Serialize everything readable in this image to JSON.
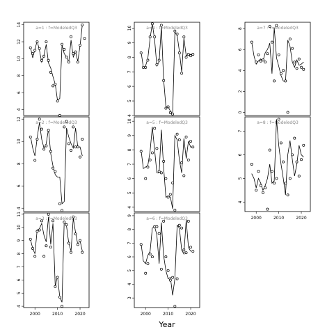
{
  "figure": {
    "xlabel": "Year"
  },
  "colors": {
    "line": "#000000",
    "label": "#888888"
  },
  "chart_data": [
    {
      "type": "line",
      "label": "a=1 : f=ModeledQ3",
      "xlim": [
        1995,
        2024
      ],
      "ylim": [
        3.3,
        14.3
      ],
      "yticks": [
        4,
        6,
        8,
        10,
        12,
        14
      ],
      "xticks": [
        2000,
        2010,
        2020
      ],
      "xticks_visible": false,
      "points": {
        "x": [
          1998,
          1999,
          2000,
          2001,
          2002,
          2003,
          2004,
          2005,
          2006,
          2007,
          2008,
          2009,
          2010,
          2011,
          2012,
          2013,
          2014,
          2015,
          2016,
          2017,
          2018,
          2019,
          2020,
          2021,
          2022
        ],
        "y": [
          11.3,
          10.6,
          11.0,
          12.0,
          11.2,
          9.8,
          10.3,
          12.0,
          9.8,
          8.4,
          6.8,
          7.0,
          5.0,
          3.3,
          11.7,
          11.1,
          10.2,
          9.6,
          12.6,
          10.6,
          10.8,
          9.6,
          11.6,
          14.0,
          12.4
        ]
      },
      "line": {
        "x": [
          1998,
          1999,
          2000,
          2001,
          2002,
          2003,
          2004,
          2005,
          2006,
          2007,
          2008,
          2009,
          2010,
          2011,
          2012,
          2013,
          2014,
          2015,
          2016,
          2017,
          2018,
          2019,
          2020,
          2021
        ],
        "y": [
          11.4,
          10.1,
          11.1,
          12.1,
          11.0,
          9.6,
          10.4,
          11.7,
          9.5,
          8.9,
          7.9,
          7.0,
          5.1,
          5.3,
          11.6,
          10.6,
          10.2,
          9.6,
          12.2,
          10.2,
          10.8,
          9.7,
          11.5,
          14.0
        ]
      }
    },
    {
      "type": "line",
      "label": "a=2 : f=ModeledQ3",
      "xlim": [
        1995,
        2024
      ],
      "ylim": [
        3.7,
        12.2
      ],
      "yticks": [
        4,
        6,
        8,
        10,
        12
      ],
      "xticks": [
        2000,
        2010,
        2020
      ],
      "xticks_visible": false,
      "points": {
        "x": [
          1998,
          2000,
          2001,
          2002,
          2003,
          2004,
          2005,
          2006,
          2007,
          2008,
          2009,
          2011,
          2012,
          2013,
          2014,
          2015,
          2016,
          2017,
          2018,
          2019,
          2020,
          2021
        ],
        "y": [
          10.4,
          8.3,
          10.2,
          12.0,
          11.1,
          9.3,
          9.6,
          11.0,
          9.1,
          7.6,
          7.3,
          4.4,
          3.8,
          11.3,
          11.8,
          9.8,
          9.2,
          11.3,
          9.5,
          9.5,
          8.6,
          10.2
        ]
      },
      "line": {
        "x": [
          1998,
          1999,
          2000,
          2001,
          2002,
          2003,
          2004,
          2005,
          2006,
          2007,
          2008,
          2009,
          2010,
          2011,
          2012,
          2013,
          2014,
          2015,
          2016,
          2017,
          2018,
          2019,
          2020,
          2021
        ],
        "y": [
          10.5,
          9.4,
          8.7,
          10.3,
          11.7,
          10.2,
          9.4,
          9.8,
          11.1,
          8.9,
          7.8,
          7.0,
          6.8,
          6.8,
          4.4,
          4.6,
          11.2,
          10.4,
          9.8,
          9.4,
          11.2,
          9.5,
          9.5,
          8.7
        ]
      }
    },
    {
      "type": "line",
      "label": "a=3 : f=ModeledQ3",
      "xlim": [
        1995,
        2024
      ],
      "ylim": [
        3.9,
        11.1
      ],
      "yticks": [
        4,
        5,
        6,
        7,
        8,
        9,
        10,
        11
      ],
      "xticks": [
        2000,
        2010,
        2020
      ],
      "xticks_visible": true,
      "points": {
        "x": [
          1998,
          1999,
          2000,
          2001,
          2002,
          2003,
          2004,
          2005,
          2006,
          2007,
          2008,
          2009,
          2010,
          2011,
          2012,
          2013,
          2014,
          2015,
          2016,
          2017,
          2018,
          2019,
          2020,
          2021
        ],
        "y": [
          9.1,
          8.4,
          7.8,
          9.7,
          9.8,
          10.5,
          7.8,
          8.6,
          11.0,
          8.5,
          10.5,
          5.5,
          6.2,
          4.7,
          4.0,
          10.4,
          10.2,
          8.8,
          8.1,
          10.8,
          9.5,
          8.7,
          9.0,
          8.1
        ]
      },
      "line": {
        "x": [
          1998,
          1999,
          2000,
          2001,
          2002,
          2003,
          2004,
          2005,
          2006,
          2007,
          2008,
          2009,
          2010,
          2011,
          2012,
          2013,
          2014,
          2015,
          2016,
          2017,
          2018,
          2019,
          2020,
          2021
        ],
        "y": [
          9.1,
          8.4,
          8.0,
          9.8,
          9.9,
          10.3,
          9.4,
          8.9,
          10.8,
          8.7,
          10.3,
          5.5,
          6.3,
          4.7,
          4.3,
          10.5,
          10.1,
          8.8,
          8.2,
          10.7,
          9.6,
          8.7,
          9.0,
          8.2
        ]
      }
    },
    {
      "type": "line",
      "label": "a=4 : f=ModeledQ3",
      "xlim": [
        1995,
        2024
      ],
      "ylim": [
        4.0,
        10.4
      ],
      "yticks": [
        4,
        5,
        6,
        7,
        8,
        9,
        10
      ],
      "xticks": [
        2000,
        2010,
        2020
      ],
      "xticks_visible": false,
      "points": {
        "x": [
          1998,
          1999,
          2000,
          2001,
          2002,
          2003,
          2004,
          2005,
          2006,
          2007,
          2008,
          2009,
          2010,
          2011,
          2012,
          2013,
          2014,
          2015,
          2016,
          2017,
          2018,
          2019,
          2020,
          2021
        ],
        "y": [
          8.3,
          7.3,
          7.3,
          7.8,
          9.4,
          10.3,
          9.4,
          7.5,
          7.8,
          10.2,
          6.4,
          4.5,
          4.6,
          4.2,
          4.1,
          9.8,
          9.6,
          8.3,
          6.9,
          9.4,
          8.0,
          8.2,
          8.1,
          8.2
        ]
      },
      "line": {
        "x": [
          1998,
          1999,
          2000,
          2001,
          2002,
          2003,
          2004,
          2005,
          2006,
          2007,
          2008,
          2009,
          2010,
          2011,
          2012,
          2013,
          2014,
          2015,
          2016,
          2017,
          2018,
          2019,
          2020,
          2021
        ],
        "y": [
          8.4,
          7.3,
          7.4,
          7.9,
          9.3,
          10.3,
          9.2,
          7.4,
          7.7,
          10.1,
          6.5,
          4.6,
          4.6,
          4.3,
          4.1,
          9.7,
          9.5,
          8.4,
          7.0,
          9.3,
          8.1,
          8.2,
          8.2,
          8.2
        ]
      }
    },
    {
      "type": "line",
      "label": "a=5 : f=ModeledQ3",
      "xlim": [
        1995,
        2024
      ],
      "ylim": [
        3.7,
        10.3
      ],
      "yticks": [
        4,
        5,
        6,
        7,
        8,
        9,
        10
      ],
      "xticks": [
        2000,
        2010,
        2020
      ],
      "xticks_visible": false,
      "points": {
        "x": [
          1998,
          2000,
          2001,
          2002,
          2003,
          2004,
          2005,
          2006,
          2007,
          2008,
          2009,
          2010,
          2011,
          2012,
          2013,
          2014,
          2015,
          2016,
          2017,
          2018,
          2019,
          2020,
          2021
        ],
        "y": [
          7.9,
          6.0,
          6.8,
          7.3,
          7.8,
          9.5,
          8.1,
          6.5,
          6.4,
          7.2,
          6.0,
          4.7,
          4.9,
          5.7,
          3.8,
          9.1,
          8.7,
          7.1,
          6.2,
          8.9,
          7.3,
          8.6,
          8.2
        ]
      },
      "line": {
        "x": [
          1998,
          1999,
          2000,
          2001,
          2002,
          2003,
          2004,
          2005,
          2006,
          2007,
          2008,
          2009,
          2010,
          2011,
          2012,
          2013,
          2014,
          2015,
          2016,
          2017,
          2018,
          2019,
          2020,
          2021
        ],
        "y": [
          8.0,
          6.7,
          6.8,
          6.9,
          7.9,
          9.6,
          8.0,
          6.4,
          6.4,
          9.4,
          6.8,
          4.7,
          4.8,
          4.7,
          3.9,
          9.0,
          8.7,
          7.3,
          6.4,
          8.8,
          7.4,
          8.6,
          8.2,
          8.2
        ]
      }
    },
    {
      "type": "line",
      "label": "a=6 : f=ModeledQ3",
      "xlim": [
        1995,
        2024
      ],
      "ylim": [
        2.3,
        9.2
      ],
      "yticks": [
        3,
        4,
        5,
        6,
        7,
        8,
        9
      ],
      "xticks": [
        2000,
        2010,
        2020
      ],
      "xticks_visible": true,
      "points": {
        "x": [
          1998,
          2000,
          2001,
          2002,
          2003,
          2004,
          2005,
          2006,
          2007,
          2008,
          2009,
          2010,
          2011,
          2012,
          2013,
          2014,
          2015,
          2016,
          2017,
          2018,
          2019,
          2020,
          2021
        ],
        "y": [
          6.9,
          4.8,
          5.5,
          6.2,
          6.0,
          8.2,
          8.2,
          7.7,
          5.1,
          8.6,
          6.0,
          5.0,
          4.3,
          4.5,
          2.4,
          4.4,
          8.3,
          8.1,
          6.5,
          6.3,
          8.6,
          6.7,
          6.4
        ]
      },
      "line": {
        "x": [
          1998,
          1999,
          2000,
          2001,
          2002,
          2003,
          2004,
          2005,
          2006,
          2007,
          2008,
          2009,
          2010,
          2011,
          2012,
          2013,
          2014,
          2015,
          2016,
          2017,
          2018,
          2019,
          2020
        ],
        "y": [
          7.0,
          5.7,
          5.5,
          6.1,
          6.4,
          8.1,
          8.2,
          7.6,
          5.5,
          8.5,
          6.1,
          5.0,
          4.4,
          4.5,
          3.2,
          4.4,
          8.3,
          8.1,
          6.5,
          6.2,
          8.7,
          6.7,
          6.4
        ]
      }
    },
    {
      "type": "line",
      "label": "a=7 : f=ModeledQ3",
      "xlim": [
        1995,
        2024
      ],
      "ylim": [
        -0.3,
        8.6
      ],
      "yticks": [
        0,
        2,
        4,
        6,
        8
      ],
      "xticks": [
        2000,
        2010,
        2020
      ],
      "xticks_visible": false,
      "points": {
        "x": [
          1998,
          2000,
          2001,
          2002,
          2003,
          2004,
          2005,
          2006,
          2007,
          2008,
          2009,
          2010,
          2011,
          2012,
          2013,
          2014,
          2015,
          2016,
          2017,
          2018,
          2019,
          2020,
          2021
        ],
        "y": [
          6.7,
          4.8,
          5.5,
          4.9,
          5.0,
          4.8,
          5.6,
          8.2,
          6.7,
          3.0,
          8.3,
          5.5,
          3.7,
          4.0,
          3.0,
          0.0,
          7.0,
          6.1,
          4.8,
          4.2,
          5.1,
          4.3,
          4.1
        ]
      },
      "line": {
        "x": [
          1998,
          1999,
          2000,
          2001,
          2002,
          2003,
          2004,
          2005,
          2006,
          2007,
          2008,
          2009,
          2010,
          2011,
          2012,
          2013,
          2014,
          2015,
          2016,
          2017,
          2018,
          2019,
          2020,
          2021
        ],
        "y": [
          6.7,
          5.4,
          4.6,
          4.9,
          5.1,
          4.9,
          5.7,
          6.0,
          6.6,
          3.7,
          8.1,
          5.2,
          4.4,
          3.5,
          3.0,
          2.9,
          6.9,
          6.3,
          4.8,
          4.3,
          5.0,
          4.5,
          4.6,
          4.8
        ]
      }
    },
    {
      "type": "line",
      "label": "a=8 : f=ModeledQ3",
      "xlim": [
        1995,
        2024
      ],
      "ylim": [
        3.6,
        7.6
      ],
      "yticks": [
        4,
        5,
        6,
        7
      ],
      "xticks": [
        2000,
        2010,
        2020
      ],
      "xticks_visible": true,
      "points": {
        "x": [
          1998,
          2000,
          2001,
          2002,
          2003,
          2004,
          2005,
          2006,
          2007,
          2008,
          2009,
          2010,
          2011,
          2012,
          2013,
          2014,
          2015,
          2016,
          2017,
          2018,
          2019,
          2020,
          2021
        ],
        "y": [
          5.6,
          4.5,
          5.3,
          4.7,
          4.4,
          4.6,
          3.7,
          6.2,
          5.3,
          4.8,
          5.0,
          7.5,
          6.5,
          5.7,
          4.8,
          4.3,
          5.0,
          6.0,
          6.7,
          5.7,
          5.1,
          5.8,
          6.4
        ]
      },
      "line": {
        "x": [
          1998,
          1999,
          2000,
          2001,
          2002,
          2003,
          2004,
          2005,
          2006,
          2007,
          2008,
          2009,
          2010,
          2011,
          2012,
          2013,
          2014,
          2015,
          2016,
          2017,
          2018,
          2019,
          2020,
          2021
        ],
        "y": [
          5.2,
          5.0,
          4.6,
          5.0,
          4.8,
          4.5,
          4.7,
          5.0,
          5.6,
          4.8,
          4.9,
          7.5,
          6.4,
          5.6,
          5.0,
          4.3,
          6.0,
          6.6,
          5.8,
          5.1,
          5.6,
          6.4,
          6.0,
          5.9
        ]
      }
    }
  ]
}
